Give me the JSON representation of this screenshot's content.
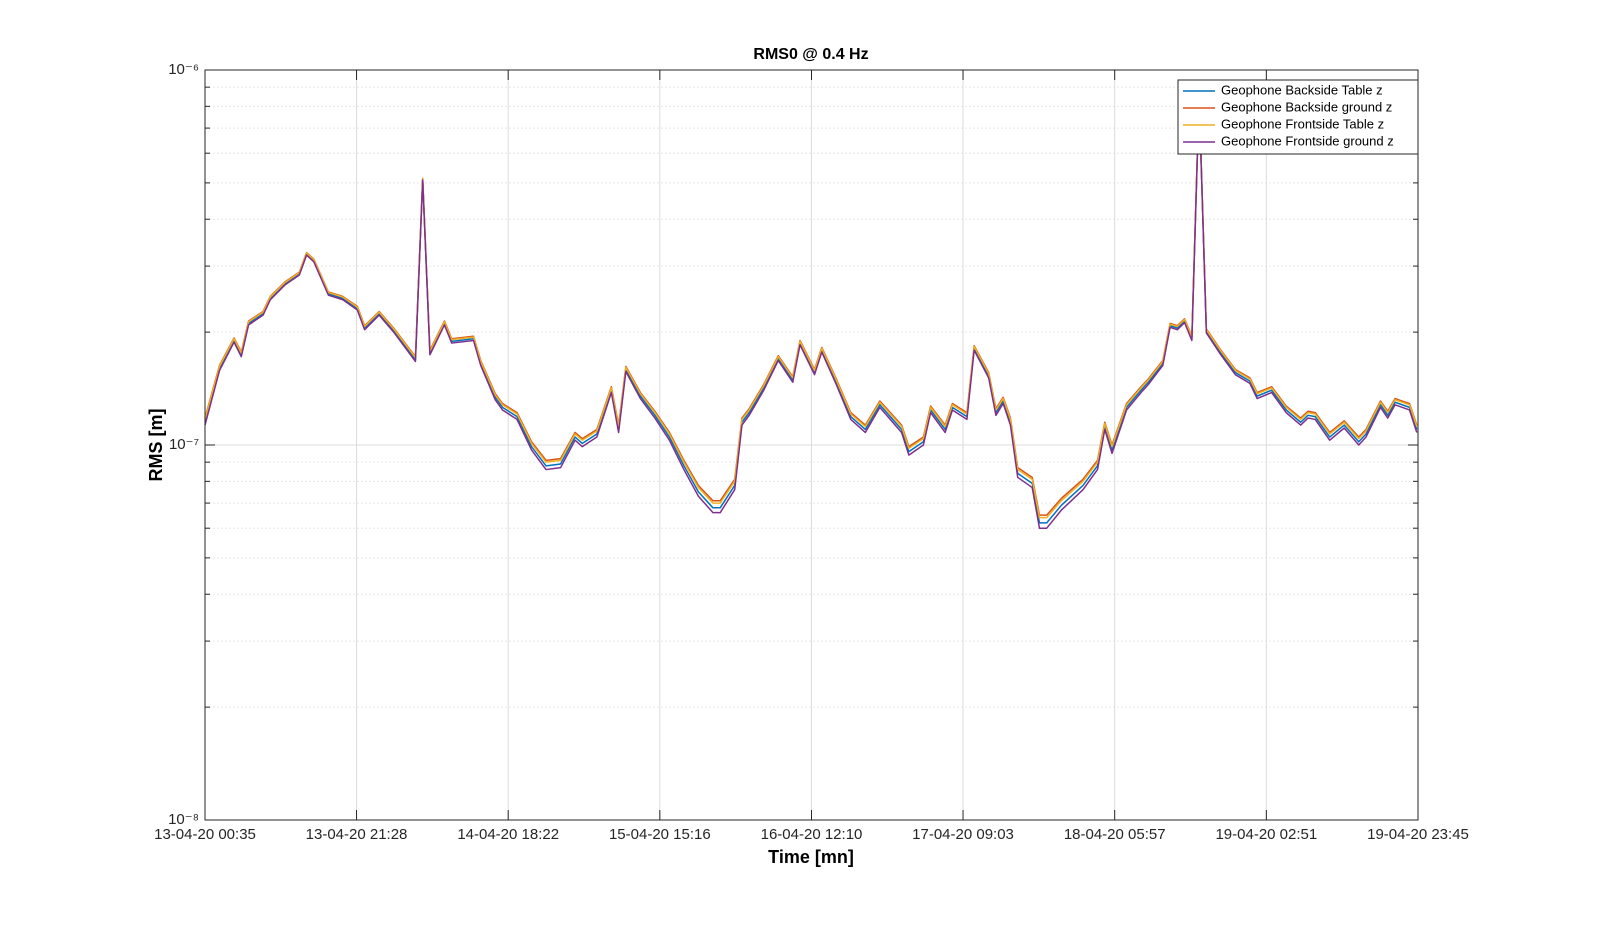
{
  "chart_data": {
    "type": "line",
    "title": "RMS0 @ 0.4 Hz",
    "xlabel": "Time [mn]",
    "ylabel": "RMS [m]",
    "yscale": "log",
    "grid": true,
    "minor_grid": true,
    "legend": "northeast",
    "xlim": [
      "13-04-20 00:35",
      "19-04-20 23:45"
    ],
    "xticks": [
      "13-04-20 00:35",
      "13-04-20 21:28",
      "14-04-20 18:22",
      "15-04-20 15:16",
      "16-04-20 12:10",
      "17-04-20 09:03",
      "18-04-20 05:57",
      "19-04-20 02:51",
      "19-04-20 23:45"
    ],
    "ylim": [
      1e-08,
      1e-06
    ],
    "yticks": [
      {
        "value": 1e-08,
        "label": "10⁻⁸"
      },
      {
        "value": 1e-07,
        "label": "10⁻⁷"
      },
      {
        "value": 1e-06,
        "label": "10⁻⁶"
      }
    ],
    "yminorticks": [
      2e-08,
      3e-08,
      4e-08,
      5e-08,
      6e-08,
      7e-08,
      8e-08,
      9e-08,
      2e-07,
      3e-07,
      4e-07,
      5e-07,
      6e-07,
      7e-07,
      8e-07,
      9e-07
    ],
    "x": [
      "13-04-20 00:35",
      "13-04-20 02:35",
      "13-04-20 04:35",
      "13-04-20 05:35",
      "13-04-20 06:35",
      "13-04-20 08:35",
      "13-04-20 09:35",
      "13-04-20 11:35",
      "13-04-20 13:35",
      "13-04-20 14:35",
      "13-04-20 15:35",
      "13-04-20 17:35",
      "13-04-20 19:35",
      "13-04-20 21:35",
      "13-04-20 22:35",
      "14-04-20 00:35",
      "14-04-20 02:35",
      "14-04-20 05:35",
      "14-04-20 06:35",
      "14-04-20 07:35",
      "14-04-20 09:35",
      "14-04-20 10:35",
      "14-04-20 13:35",
      "14-04-20 14:35",
      "14-04-20 16:35",
      "14-04-20 17:35",
      "14-04-20 19:35",
      "14-04-20 21:35",
      "14-04-20 23:35",
      "15-04-20 01:35",
      "15-04-20 03:35",
      "15-04-20 04:35",
      "15-04-20 06:35",
      "15-04-20 08:35",
      "15-04-20 09:35",
      "15-04-20 10:35",
      "15-04-20 12:35",
      "15-04-20 14:35",
      "15-04-20 16:35",
      "15-04-20 18:35",
      "15-04-20 20:35",
      "15-04-20 22:35",
      "15-04-20 23:35",
      "16-04-20 01:35",
      "16-04-20 02:35",
      "16-04-20 03:35",
      "16-04-20 05:35",
      "16-04-20 07:35",
      "16-04-20 09:35",
      "16-04-20 10:35",
      "16-04-20 12:35",
      "16-04-20 13:35",
      "16-04-20 15:35",
      "16-04-20 17:35",
      "16-04-20 19:35",
      "16-04-20 21:35",
      "17-04-20 00:35",
      "17-04-20 01:35",
      "17-04-20 03:35",
      "17-04-20 04:35",
      "17-04-20 06:35",
      "17-04-20 07:35",
      "17-04-20 09:35",
      "17-04-20 10:35",
      "17-04-20 12:35",
      "17-04-20 13:35",
      "17-04-20 14:35",
      "17-04-20 15:35",
      "17-04-20 16:35",
      "17-04-20 18:35",
      "17-04-20 19:35",
      "17-04-20 20:35",
      "17-04-20 22:35",
      "18-04-20 01:35",
      "18-04-20 03:35",
      "18-04-20 04:35",
      "18-04-20 05:35",
      "18-04-20 07:35",
      "18-04-20 09:35",
      "18-04-20 10:35",
      "18-04-20 12:35",
      "18-04-20 13:35",
      "18-04-20 14:35",
      "18-04-20 15:35",
      "18-04-20 16:35",
      "18-04-20 17:35",
      "18-04-20 18:35",
      "18-04-20 20:35",
      "18-04-20 22:35",
      "19-04-20 00:35",
      "19-04-20 01:35",
      "19-04-20 03:35",
      "19-04-20 05:35",
      "19-04-20 07:35",
      "19-04-20 08:35",
      "19-04-20 09:35",
      "19-04-20 11:35",
      "19-04-20 13:35",
      "19-04-20 15:35",
      "19-04-20 16:35",
      "19-04-20 18:35",
      "19-04-20 19:35",
      "19-04-20 20:35",
      "19-04-20 22:35",
      "19-04-20 23:35"
    ],
    "series": [
      {
        "name": "Geophone Backside Table z",
        "color": "#0072BD",
        "values": [
          1.15e-07,
          1.6e-07,
          1.9e-07,
          1.74e-07,
          2.11e-07,
          2.24e-07,
          2.46e-07,
          2.69e-07,
          2.86e-07,
          3.23e-07,
          3.1e-07,
          2.53e-07,
          2.46e-07,
          2.31e-07,
          2.05e-07,
          2.24e-07,
          2.02e-07,
          1.69e-07,
          5.11e-07,
          1.76e-07,
          2.11e-07,
          1.89e-07,
          1.92e-07,
          1.65e-07,
          1.34e-07,
          1.26e-07,
          1.19e-07,
          9.9e-08,
          8.8e-08,
          8.9e-08,
          1.05e-07,
          1.01e-07,
          1.07e-07,
          1.4e-07,
          1.1e-07,
          1.59e-07,
          1.35e-07,
          1.2e-07,
          1.05e-07,
          8.8e-08,
          7.5e-08,
          6.8e-08,
          6.8e-08,
          7.8e-08,
          1.15e-07,
          1.22e-07,
          1.42e-07,
          1.7e-07,
          1.49e-07,
          1.87e-07,
          1.56e-07,
          1.79e-07,
          1.47e-07,
          1.19e-07,
          1.1e-07,
          1.28e-07,
          1.1e-07,
          9.6e-08,
          1.02e-07,
          1.24e-07,
          1.1e-07,
          1.26e-07,
          1.19e-07,
          1.81e-07,
          1.53e-07,
          1.22e-07,
          1.31e-07,
          1.15e-07,
          8.4e-08,
          7.9e-08,
          6.2e-08,
          6.2e-08,
          6.9e-08,
          7.8e-08,
          8.8e-08,
          1.12e-07,
          9.7e-08,
          1.26e-07,
          1.4e-07,
          1.47e-07,
          1.65e-07,
          2.08e-07,
          2.05e-07,
          2.14e-07,
          1.92e-07,
          8.52e-07,
          2.01e-07,
          1.76e-07,
          1.56e-07,
          1.48e-07,
          1.35e-07,
          1.4e-07,
          1.24e-07,
          1.15e-07,
          1.2e-07,
          1.19e-07,
          1.05e-07,
          1.13e-07,
          1.02e-07,
          1.07e-07,
          1.28e-07,
          1.2e-07,
          1.3e-07,
          1.26e-07,
          1.1e-07
        ]
      },
      {
        "name": "Geophone Backside ground z",
        "color": "#D95319",
        "values": [
          1.18e-07,
          1.63e-07,
          1.93e-07,
          1.77e-07,
          2.14e-07,
          2.27e-07,
          2.49e-07,
          2.72e-07,
          2.89e-07,
          3.26e-07,
          3.13e-07,
          2.56e-07,
          2.49e-07,
          2.34e-07,
          2.08e-07,
          2.27e-07,
          2.05e-07,
          1.72e-07,
          5.14e-07,
          1.79e-07,
          2.14e-07,
          1.92e-07,
          1.95e-07,
          1.68e-07,
          1.37e-07,
          1.29e-07,
          1.22e-07,
          1.02e-07,
          9.1e-08,
          9.2e-08,
          1.08e-07,
          1.04e-07,
          1.1e-07,
          1.43e-07,
          1.13e-07,
          1.62e-07,
          1.38e-07,
          1.23e-07,
          1.08e-07,
          9.1e-08,
          7.8e-08,
          7.1e-08,
          7.1e-08,
          8.1e-08,
          1.18e-07,
          1.25e-07,
          1.45e-07,
          1.73e-07,
          1.52e-07,
          1.9e-07,
          1.59e-07,
          1.82e-07,
          1.5e-07,
          1.22e-07,
          1.13e-07,
          1.31e-07,
          1.13e-07,
          9.9e-08,
          1.05e-07,
          1.27e-07,
          1.13e-07,
          1.29e-07,
          1.22e-07,
          1.84e-07,
          1.56e-07,
          1.25e-07,
          1.34e-07,
          1.18e-07,
          8.7e-08,
          8.2e-08,
          6.5e-08,
          6.5e-08,
          7.2e-08,
          8.1e-08,
          9.1e-08,
          1.15e-07,
          1e-07,
          1.29e-07,
          1.43e-07,
          1.5e-07,
          1.68e-07,
          2.11e-07,
          2.08e-07,
          2.17e-07,
          1.95e-07,
          8.55e-07,
          2.04e-07,
          1.79e-07,
          1.59e-07,
          1.51e-07,
          1.38e-07,
          1.43e-07,
          1.27e-07,
          1.18e-07,
          1.23e-07,
          1.22e-07,
          1.08e-07,
          1.16e-07,
          1.05e-07,
          1.1e-07,
          1.31e-07,
          1.23e-07,
          1.33e-07,
          1.29e-07,
          1.13e-07
        ]
      },
      {
        "name": "Geophone Frontside Table z",
        "color": "#EDB120",
        "values": [
          1.17e-07,
          1.62e-07,
          1.92e-07,
          1.76e-07,
          2.13e-07,
          2.26e-07,
          2.48e-07,
          2.71e-07,
          2.88e-07,
          3.25e-07,
          3.12e-07,
          2.55e-07,
          2.48e-07,
          2.33e-07,
          2.07e-07,
          2.26e-07,
          2.04e-07,
          1.71e-07,
          5.13e-07,
          1.78e-07,
          2.13e-07,
          1.91e-07,
          1.94e-07,
          1.67e-07,
          1.36e-07,
          1.28e-07,
          1.21e-07,
          1.01e-07,
          9e-08,
          9.1e-08,
          1.07e-07,
          1.03e-07,
          1.09e-07,
          1.42e-07,
          1.12e-07,
          1.61e-07,
          1.37e-07,
          1.22e-07,
          1.07e-07,
          9e-08,
          7.7e-08,
          7e-08,
          7e-08,
          8e-08,
          1.17e-07,
          1.24e-07,
          1.44e-07,
          1.72e-07,
          1.51e-07,
          1.89e-07,
          1.58e-07,
          1.81e-07,
          1.49e-07,
          1.21e-07,
          1.12e-07,
          1.3e-07,
          1.12e-07,
          9.8e-08,
          1.04e-07,
          1.26e-07,
          1.12e-07,
          1.28e-07,
          1.21e-07,
          1.83e-07,
          1.55e-07,
          1.24e-07,
          1.33e-07,
          1.17e-07,
          8.6e-08,
          8.1e-08,
          6.4e-08,
          6.4e-08,
          7.1e-08,
          8e-08,
          9e-08,
          1.14e-07,
          9.9e-08,
          1.28e-07,
          1.42e-07,
          1.49e-07,
          1.67e-07,
          2.1e-07,
          2.07e-07,
          2.16e-07,
          1.94e-07,
          8.54e-07,
          2.03e-07,
          1.78e-07,
          1.58e-07,
          1.5e-07,
          1.37e-07,
          1.42e-07,
          1.26e-07,
          1.17e-07,
          1.22e-07,
          1.21e-07,
          1.07e-07,
          1.15e-07,
          1.04e-07,
          1.09e-07,
          1.3e-07,
          1.22e-07,
          1.32e-07,
          1.28e-07,
          1.12e-07
        ]
      },
      {
        "name": "Geophone Frontside ground z",
        "color": "#7E2F8E",
        "values": [
          1.13e-07,
          1.58e-07,
          1.88e-07,
          1.72e-07,
          2.09e-07,
          2.22e-07,
          2.44e-07,
          2.67e-07,
          2.84e-07,
          3.21e-07,
          3.08e-07,
          2.51e-07,
          2.44e-07,
          2.29e-07,
          2.03e-07,
          2.22e-07,
          2e-07,
          1.67e-07,
          5.09e-07,
          1.74e-07,
          2.09e-07,
          1.87e-07,
          1.9e-07,
          1.63e-07,
          1.32e-07,
          1.24e-07,
          1.17e-07,
          9.7e-08,
          8.6e-08,
          8.7e-08,
          1.03e-07,
          9.9e-08,
          1.05e-07,
          1.38e-07,
          1.08e-07,
          1.57e-07,
          1.33e-07,
          1.18e-07,
          1.03e-07,
          8.6e-08,
          7.3e-08,
          6.6e-08,
          6.6e-08,
          7.6e-08,
          1.13e-07,
          1.2e-07,
          1.4e-07,
          1.68e-07,
          1.47e-07,
          1.85e-07,
          1.54e-07,
          1.77e-07,
          1.45e-07,
          1.17e-07,
          1.08e-07,
          1.26e-07,
          1.08e-07,
          9.4e-08,
          1e-07,
          1.22e-07,
          1.08e-07,
          1.24e-07,
          1.17e-07,
          1.79e-07,
          1.51e-07,
          1.2e-07,
          1.29e-07,
          1.13e-07,
          8.2e-08,
          7.7e-08,
          6e-08,
          6e-08,
          6.7e-08,
          7.6e-08,
          8.6e-08,
          1.1e-07,
          9.5e-08,
          1.24e-07,
          1.38e-07,
          1.45e-07,
          1.63e-07,
          2.06e-07,
          2.03e-07,
          2.12e-07,
          1.9e-07,
          8.5e-07,
          1.99e-07,
          1.74e-07,
          1.54e-07,
          1.46e-07,
          1.33e-07,
          1.38e-07,
          1.22e-07,
          1.13e-07,
          1.18e-07,
          1.17e-07,
          1.03e-07,
          1.11e-07,
          1e-07,
          1.05e-07,
          1.26e-07,
          1.18e-07,
          1.28e-07,
          1.24e-07,
          1.08e-07
        ]
      }
    ]
  }
}
